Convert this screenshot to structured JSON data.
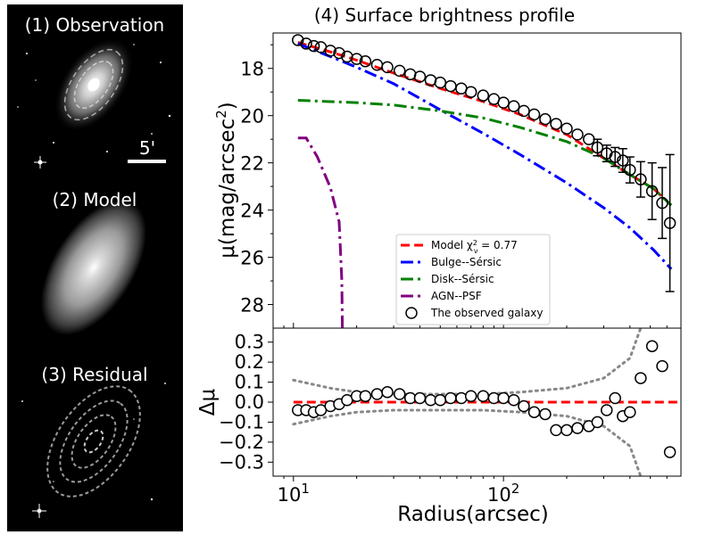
{
  "panels": {
    "observation_label": "(1) Observation",
    "scale_label": "5'",
    "model_label": "(2) Model",
    "residual_label": "(3) Residual"
  },
  "chart_data": {
    "type": "line",
    "title": "(4) Surface brightness profile",
    "xlabel": "Radius(arcsec)",
    "xscale": "log",
    "xlim": [
      8.0,
      700
    ],
    "x_ticks": [
      {
        "value": 10,
        "label": "10^1"
      },
      {
        "value": 100,
        "label": "10^2"
      }
    ],
    "top": {
      "ylabel": "μ(mag/arcsec²)",
      "ylim": [
        29.0,
        16.5
      ],
      "yticks": [
        18,
        20,
        22,
        24,
        26,
        28
      ],
      "series": [
        {
          "name": "Model χ²ν = 0.77",
          "style": "dashed",
          "color": "#ff0000",
          "x": [
            10.5,
            15,
            20,
            30,
            50,
            80,
            120,
            200,
            300,
            400,
            520,
            630
          ],
          "y": [
            16.9,
            17.3,
            17.65,
            18.2,
            18.85,
            19.4,
            19.95,
            20.8,
            21.8,
            22.5,
            23.1,
            23.8
          ]
        },
        {
          "name": "Bulge--Sérsic",
          "style": "dashdot",
          "color": "#0000ff",
          "x": [
            10.5,
            15,
            20,
            30,
            50,
            80,
            120,
            200,
            300,
            400,
            520,
            630
          ],
          "y": [
            16.95,
            17.5,
            17.95,
            18.65,
            19.75,
            20.75,
            21.65,
            22.85,
            23.9,
            24.75,
            25.7,
            26.5
          ]
        },
        {
          "name": "Disk--Sérsic",
          "style": "dashdot",
          "color": "#008000",
          "x": [
            10.5,
            20,
            30,
            50,
            80,
            120,
            200,
            300,
            400,
            520,
            630
          ],
          "y": [
            19.35,
            19.45,
            19.55,
            19.8,
            20.1,
            20.5,
            21.1,
            21.8,
            22.5,
            23.1,
            23.8
          ]
        },
        {
          "name": "AGN--PSF",
          "style": "dashdot",
          "color": "#800080",
          "x": [
            10.5,
            11.5,
            13,
            15,
            16.5,
            17,
            17.1
          ],
          "y": [
            20.95,
            20.95,
            21.75,
            23.05,
            24.5,
            27.0,
            29.0
          ]
        }
      ],
      "observed": {
        "name": "The observed galaxy",
        "x": [
          10.5,
          11.5,
          12.5,
          13.5,
          15,
          16.5,
          18,
          20,
          22,
          25,
          28,
          32,
          36,
          40,
          45,
          50,
          56,
          63,
          70,
          80,
          90,
          100,
          112,
          125,
          140,
          158,
          178,
          200,
          225,
          255,
          280,
          310,
          340,
          370,
          400,
          450,
          510,
          570,
          620
        ],
        "y": [
          16.8,
          16.95,
          17.05,
          17.1,
          17.25,
          17.35,
          17.5,
          17.6,
          17.7,
          17.85,
          17.95,
          18.1,
          18.25,
          18.35,
          18.5,
          18.6,
          18.75,
          18.85,
          19.0,
          19.15,
          19.3,
          19.45,
          19.6,
          19.8,
          19.95,
          20.15,
          20.35,
          20.55,
          20.8,
          21.0,
          21.35,
          21.6,
          21.75,
          21.9,
          22.3,
          22.7,
          23.2,
          23.7,
          24.55
        ],
        "yerr": [
          0,
          0,
          0,
          0,
          0,
          0,
          0,
          0,
          0,
          0,
          0,
          0,
          0,
          0,
          0,
          0,
          0,
          0,
          0,
          0,
          0,
          0,
          0,
          0,
          0,
          0,
          0,
          0,
          0,
          0,
          0.35,
          0.35,
          0.4,
          0.5,
          0.55,
          0.75,
          1.2,
          1.5,
          2.9
        ]
      }
    },
    "bottom": {
      "ylabel": "Δμ",
      "ylim": [
        -0.37,
        0.37
      ],
      "yticks": [
        -0.3,
        -0.2,
        -0.1,
        0.0,
        0.1,
        0.2,
        0.3
      ],
      "ytick_labels": [
        "−0.3",
        "−0.2",
        "−0.1",
        "0.0",
        "0.1",
        "0.2",
        "0.3"
      ],
      "zero_line_color": "#ff0000",
      "bound_color": "#888888",
      "upper_bound": {
        "x": [
          10,
          15,
          20,
          30,
          50,
          80,
          120,
          200,
          300,
          400,
          450
        ],
        "y": [
          0.11,
          0.07,
          0.05,
          0.04,
          0.04,
          0.04,
          0.05,
          0.07,
          0.12,
          0.22,
          0.37
        ]
      },
      "lower_bound": {
        "x": [
          10,
          15,
          20,
          30,
          50,
          80,
          120,
          200,
          300,
          400,
          450
        ],
        "y": [
          -0.11,
          -0.07,
          -0.05,
          -0.04,
          -0.04,
          -0.04,
          -0.05,
          -0.07,
          -0.12,
          -0.22,
          -0.37
        ]
      },
      "residuals": {
        "x": [
          10.5,
          11.5,
          12.5,
          13.5,
          15,
          16.5,
          18,
          20,
          22,
          25,
          28,
          32,
          36,
          40,
          45,
          50,
          56,
          63,
          70,
          80,
          90,
          100,
          112,
          125,
          140,
          158,
          178,
          200,
          225,
          255,
          280,
          310,
          340,
          370,
          400,
          450,
          510,
          570,
          620
        ],
        "y": [
          -0.04,
          -0.04,
          -0.05,
          -0.04,
          -0.02,
          -0.01,
          0.01,
          0.03,
          0.03,
          0.04,
          0.05,
          0.04,
          0.02,
          0.02,
          0.01,
          0.01,
          0.02,
          0.02,
          0.03,
          0.03,
          0.02,
          0.02,
          0.01,
          -0.02,
          -0.05,
          -0.06,
          -0.14,
          -0.14,
          -0.13,
          -0.12,
          -0.1,
          -0.04,
          0.02,
          -0.07,
          -0.05,
          0.12,
          0.28,
          0.18,
          -0.25
        ]
      }
    },
    "legend": {
      "position": "lower-left inside top panel",
      "entries": [
        {
          "label": "Model χ",
          "sup": "2",
          "sub": "ν",
          "suffix": " = 0.77",
          "style": "dashed",
          "color": "#ff0000"
        },
        {
          "label": "Bulge--Sérsic",
          "style": "dashdot",
          "color": "#0000ff"
        },
        {
          "label": "Disk--Sérsic",
          "style": "dashdot",
          "color": "#008000"
        },
        {
          "label": "AGN--PSF",
          "style": "dashdot",
          "color": "#800080"
        },
        {
          "label": "The observed galaxy",
          "style": "marker",
          "color": "#000000"
        }
      ]
    }
  }
}
